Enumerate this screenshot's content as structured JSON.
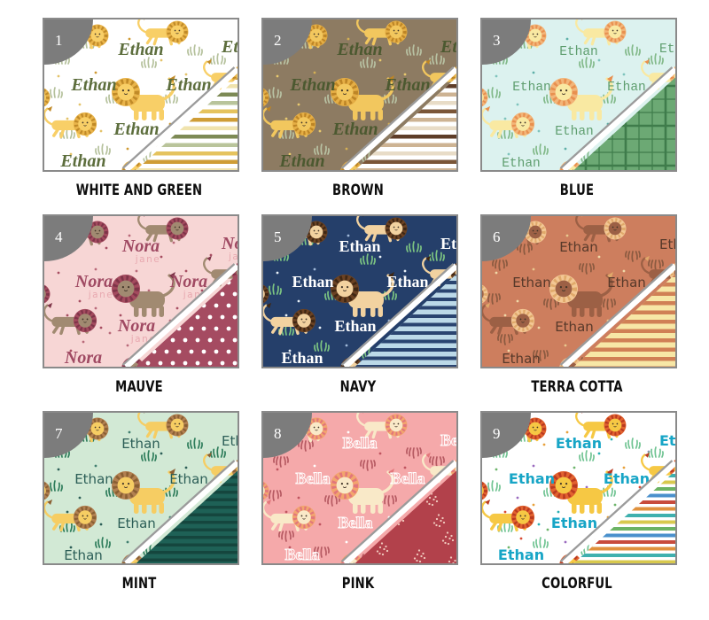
{
  "badge": {
    "color": "#7c7c7c",
    "text_color": "#ffffff"
  },
  "border_color": "#8a8a8a",
  "fold_line_color": "#9b9b9b",
  "cards": [
    {
      "number": "1",
      "label": "WHITE AND GREEN",
      "name": "Ethan",
      "name_sub": "",
      "style": "script",
      "bg": "#ffffff",
      "name_color": "#5d6e3d",
      "name_sub_color": "",
      "lion": {
        "body": "#f8cf67",
        "mane": "#e9b44a",
        "mane2": "#c08a28"
      },
      "grass": "#b5c19c",
      "sprig_down": false,
      "dot_colors": [
        "#e4c36a",
        "#cf9a33"
      ],
      "dots_dense": false,
      "corner": {
        "type": "stripes",
        "bg": "#ffffff",
        "colors": [
          "#e5c35e",
          "#cf9d36",
          "#f0e3ad",
          "#7d8a55",
          "#b9c49b"
        ],
        "h": 4.5,
        "gap": 5
      }
    },
    {
      "number": "2",
      "label": "BROWN",
      "name": "Ethan",
      "name_sub": "",
      "style": "script",
      "bg": "#8d7b62",
      "name_color": "#4c5930",
      "name_sub_color": "",
      "lion": {
        "body": "#f2c75e",
        "mane": "#e5ae45",
        "mane2": "#bd8526"
      },
      "grass": "#b8c2a3",
      "sprig_down": false,
      "dot_colors": [
        "#e8c96e",
        "#d4b054"
      ],
      "dots_dense": false,
      "corner": {
        "type": "stripes",
        "bg": "#ffffff",
        "colors": [
          "#cdb393",
          "#e8dcc7",
          "#5e3d28",
          "#cdb393",
          "#e8dcc7",
          "#7a5638"
        ],
        "h": 4.5,
        "gap": 5
      }
    },
    {
      "number": "3",
      "label": "BLUE",
      "name": "Ethan",
      "name_sub": "",
      "style": "print",
      "bg": "#dcf2ef",
      "name_color": "#5f9e6f",
      "name_sub_color": "",
      "lion": {
        "body": "#f9e9a2",
        "mane": "#f2b579",
        "mane2": "#e8904f"
      },
      "grass": "#82b989",
      "sprig_down": false,
      "dot_colors": [
        "#7fc4bd",
        "#5fb0a8"
      ],
      "dots_dense": false,
      "corner": {
        "type": "plaid",
        "bg": "#6ca974",
        "line": "#3f7c4b"
      }
    },
    {
      "number": "4",
      "label": "MAUVE",
      "name": "Nora",
      "name_sub": "jane",
      "style": "script",
      "bg": "#f7d6d5",
      "name_color": "#a04a63",
      "name_sub_color": "#e8a9b0",
      "lion": {
        "body": "#a18a71",
        "mane": "#a34a5e",
        "mane2": "#7e3448"
      },
      "grass": "",
      "sprig_down": false,
      "dot_colors": [
        "#a74e62",
        "#b96a7a"
      ],
      "dots_dense": true,
      "corner": {
        "type": "dots",
        "bg": "#a54b61",
        "dot": "#ffffff"
      }
    },
    {
      "number": "5",
      "label": "NAVY",
      "name": "Ethan",
      "name_sub": "",
      "style": "serifbold",
      "bg": "#253f6a",
      "name_color": "#ffffff",
      "name_sub_color": "",
      "lion": {
        "body": "#f2d2a0",
        "mane": "#6b4223",
        "mane2": "#3f2713"
      },
      "grass": "#7cc482",
      "sprig_down": false,
      "dot_colors": [
        "#e9f1f8",
        "#9fb8d8"
      ],
      "dots_dense": false,
      "corner": {
        "type": "stripes",
        "bg": "#bcd9e8",
        "colors": [
          "#2a4470"
        ],
        "h": 4,
        "gap": 5.5
      }
    },
    {
      "number": "6",
      "label": "TERRA COTTA",
      "name": "Ethan",
      "name_sub": "",
      "style": "rounded",
      "bg": "#cd7e5e",
      "name_color": "#57392a",
      "name_sub_color": "",
      "lion": {
        "body": "#9c6045",
        "mane": "#f3c794",
        "mane2": "#e0a96a"
      },
      "grass": "#8a5a40",
      "sprig_down": true,
      "dot_colors": [
        "#f0d9a8",
        "#e8c88e"
      ],
      "dots_dense": false,
      "corner": {
        "type": "stripes",
        "bg": "#f7e7a6",
        "colors": [
          "#d08055"
        ],
        "h": 4.5,
        "gap": 6
      }
    },
    {
      "number": "7",
      "label": "MINT",
      "name": "Ethan",
      "name_sub": "",
      "style": "sans",
      "bg": "#d2e9d5",
      "name_color": "#2c5e57",
      "name_sub_color": "",
      "lion": {
        "body": "#f6cd63",
        "mane": "#b28051",
        "mane2": "#8a5f33"
      },
      "grass": "#2e7d5b",
      "sprig_down": false,
      "dot_colors": [
        "#2c5e57",
        "#417f70"
      ],
      "dots_dense": false,
      "corner": {
        "type": "stripes",
        "bg": "#1e6156",
        "colors": [
          "#15463e"
        ],
        "h": 3.5,
        "gap": 5
      }
    },
    {
      "number": "8",
      "label": "PINK",
      "name": "Bella",
      "name_sub": "",
      "style": "outline",
      "bg": "#f5a9aa",
      "name_color": "#ffffff",
      "name_sub_color": "",
      "lion": {
        "body": "#f9e9c8",
        "mane": "#f2a56e",
        "mane2": "#e2767b"
      },
      "grass": "#b65a62",
      "sprig_down": true,
      "dot_colors": [
        "#c05560",
        "#ffffff"
      ],
      "dots_dense": false,
      "corner": {
        "type": "clusters",
        "bg": "#b2414b",
        "dot": "#f0c9bd"
      }
    },
    {
      "number": "9",
      "label": "COLORFUL",
      "name": "Ethan",
      "name_sub": "",
      "style": "heavy",
      "bg": "#ffffff",
      "name_color": "#17a5c6",
      "name_sub_color": "",
      "lion": {
        "body": "#f6c844",
        "mane": "#e2622f",
        "mane2": "#b93a20"
      },
      "grass": "#71c493",
      "sprig_down": false,
      "dot_colors": [
        "#d84b35",
        "#e8a13c",
        "#2ab0b4",
        "#9a6bbf",
        "#6db56b"
      ],
      "dots_dense": true,
      "corner": {
        "type": "stripes",
        "bg": "#ffffff",
        "colors": [
          "#c84b3b",
          "#e0913c",
          "#3fb0ae",
          "#d8c94e",
          "#6cb364",
          "#4a90cc"
        ],
        "h": 4,
        "gap": 3.5
      }
    }
  ]
}
